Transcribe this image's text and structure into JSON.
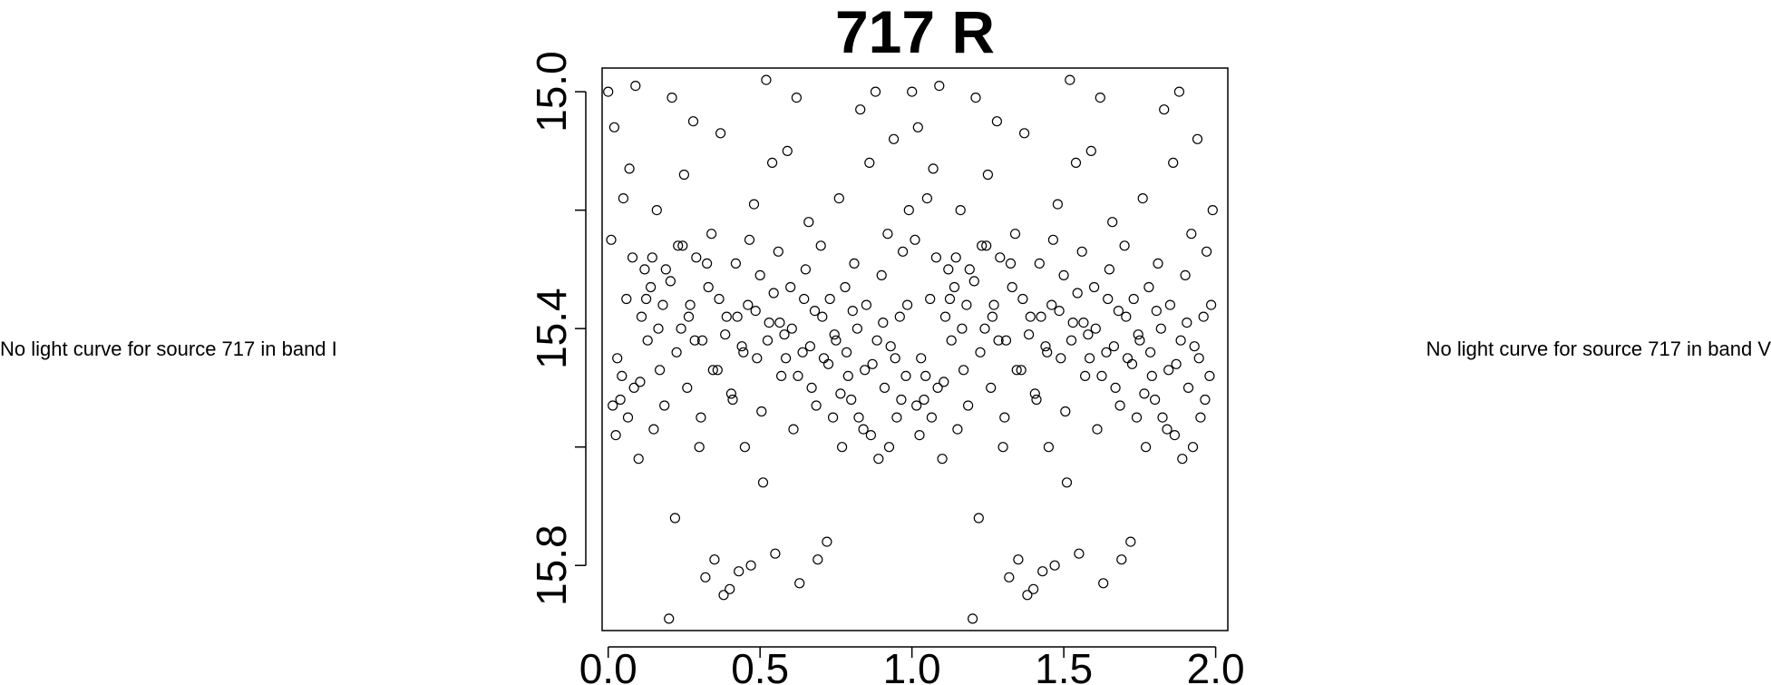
{
  "left_message": "No light curve for source 717 in band I",
  "right_message": "No light curve for source 717 in band V",
  "chart_data": {
    "type": "scatter",
    "title": "717 R",
    "xlabel": "",
    "ylabel": "",
    "xlim": [
      -0.02,
      2.04
    ],
    "ylim": [
      15.91,
      14.96
    ],
    "y_inverted": true,
    "x_ticks": [
      "0.0",
      "0.5",
      "1.0",
      "1.5",
      "2.0"
    ],
    "y_ticks": [
      "15.0",
      "15.4",
      "15.8"
    ],
    "marker": "open-circle",
    "marker_color": "#000000",
    "phase_fold": "points repeated at phase and phase+1",
    "points": [
      {
        "x": 0.0,
        "y": 15.0
      },
      {
        "x": 0.01,
        "y": 15.25
      },
      {
        "x": 0.02,
        "y": 15.06
      },
      {
        "x": 0.03,
        "y": 15.45
      },
      {
        "x": 0.04,
        "y": 15.52
      },
      {
        "x": 0.05,
        "y": 15.18
      },
      {
        "x": 0.06,
        "y": 15.35
      },
      {
        "x": 0.07,
        "y": 15.13
      },
      {
        "x": 0.08,
        "y": 15.28
      },
      {
        "x": 0.09,
        "y": 14.99
      },
      {
        "x": 0.1,
        "y": 15.62
      },
      {
        "x": 0.11,
        "y": 15.38
      },
      {
        "x": 0.12,
        "y": 15.3
      },
      {
        "x": 0.13,
        "y": 15.42
      },
      {
        "x": 0.14,
        "y": 15.33
      },
      {
        "x": 0.15,
        "y": 15.57
      },
      {
        "x": 0.16,
        "y": 15.2
      },
      {
        "x": 0.17,
        "y": 15.47
      },
      {
        "x": 0.18,
        "y": 15.36
      },
      {
        "x": 0.19,
        "y": 15.3
      },
      {
        "x": 0.2,
        "y": 15.89
      },
      {
        "x": 0.21,
        "y": 15.01
      },
      {
        "x": 0.22,
        "y": 15.72
      },
      {
        "x": 0.23,
        "y": 15.26
      },
      {
        "x": 0.24,
        "y": 15.4
      },
      {
        "x": 0.25,
        "y": 15.14
      },
      {
        "x": 0.26,
        "y": 15.5
      },
      {
        "x": 0.27,
        "y": 15.36
      },
      {
        "x": 0.28,
        "y": 15.05
      },
      {
        "x": 0.29,
        "y": 15.28
      },
      {
        "x": 0.3,
        "y": 15.6
      },
      {
        "x": 0.31,
        "y": 15.42
      },
      {
        "x": 0.32,
        "y": 15.82
      },
      {
        "x": 0.33,
        "y": 15.33
      },
      {
        "x": 0.34,
        "y": 15.24
      },
      {
        "x": 0.35,
        "y": 15.79
      },
      {
        "x": 0.36,
        "y": 15.47
      },
      {
        "x": 0.37,
        "y": 15.07
      },
      {
        "x": 0.38,
        "y": 15.85
      },
      {
        "x": 0.39,
        "y": 15.38
      },
      {
        "x": 0.4,
        "y": 15.84
      },
      {
        "x": 0.41,
        "y": 15.52
      },
      {
        "x": 0.42,
        "y": 15.29
      },
      {
        "x": 0.43,
        "y": 15.81
      },
      {
        "x": 0.44,
        "y": 15.43
      },
      {
        "x": 0.45,
        "y": 15.6
      },
      {
        "x": 0.46,
        "y": 15.36
      },
      {
        "x": 0.47,
        "y": 15.8
      },
      {
        "x": 0.48,
        "y": 15.19
      },
      {
        "x": 0.49,
        "y": 15.45
      },
      {
        "x": 0.5,
        "y": 15.31
      },
      {
        "x": 0.51,
        "y": 15.66
      },
      {
        "x": 0.52,
        "y": 14.98
      },
      {
        "x": 0.53,
        "y": 15.39
      },
      {
        "x": 0.54,
        "y": 15.12
      },
      {
        "x": 0.55,
        "y": 15.78
      },
      {
        "x": 0.56,
        "y": 15.27
      },
      {
        "x": 0.57,
        "y": 15.48
      },
      {
        "x": 0.58,
        "y": 15.41
      },
      {
        "x": 0.59,
        "y": 15.1
      },
      {
        "x": 0.6,
        "y": 15.33
      },
      {
        "x": 0.61,
        "y": 15.57
      },
      {
        "x": 0.62,
        "y": 15.01
      },
      {
        "x": 0.63,
        "y": 15.83
      },
      {
        "x": 0.64,
        "y": 15.44
      },
      {
        "x": 0.65,
        "y": 15.3
      },
      {
        "x": 0.66,
        "y": 15.22
      },
      {
        "x": 0.67,
        "y": 15.5
      },
      {
        "x": 0.68,
        "y": 15.37
      },
      {
        "x": 0.69,
        "y": 15.79
      },
      {
        "x": 0.7,
        "y": 15.26
      },
      {
        "x": 0.71,
        "y": 15.45
      },
      {
        "x": 0.72,
        "y": 15.76
      },
      {
        "x": 0.73,
        "y": 15.35
      },
      {
        "x": 0.74,
        "y": 15.55
      },
      {
        "x": 0.75,
        "y": 15.42
      },
      {
        "x": 0.76,
        "y": 15.18
      },
      {
        "x": 0.77,
        "y": 15.6
      },
      {
        "x": 0.78,
        "y": 15.33
      },
      {
        "x": 0.79,
        "y": 15.48
      },
      {
        "x": 0.8,
        "y": 15.52
      },
      {
        "x": 0.81,
        "y": 15.29
      },
      {
        "x": 0.82,
        "y": 15.4
      },
      {
        "x": 0.83,
        "y": 15.03
      },
      {
        "x": 0.84,
        "y": 15.57
      },
      {
        "x": 0.85,
        "y": 15.36
      },
      {
        "x": 0.86,
        "y": 15.12
      },
      {
        "x": 0.87,
        "y": 15.46
      },
      {
        "x": 0.88,
        "y": 15.0
      },
      {
        "x": 0.89,
        "y": 15.62
      },
      {
        "x": 0.9,
        "y": 15.31
      },
      {
        "x": 0.91,
        "y": 15.5
      },
      {
        "x": 0.92,
        "y": 15.24
      },
      {
        "x": 0.93,
        "y": 15.43
      },
      {
        "x": 0.94,
        "y": 15.08
      },
      {
        "x": 0.95,
        "y": 15.55
      },
      {
        "x": 0.96,
        "y": 15.38
      },
      {
        "x": 0.97,
        "y": 15.27
      },
      {
        "x": 0.98,
        "y": 15.48
      },
      {
        "x": 0.99,
        "y": 15.2
      },
      {
        "x": 0.015,
        "y": 15.53
      },
      {
        "x": 0.025,
        "y": 15.58
      },
      {
        "x": 0.045,
        "y": 15.48
      },
      {
        "x": 0.065,
        "y": 15.55
      },
      {
        "x": 0.085,
        "y": 15.5
      },
      {
        "x": 0.105,
        "y": 15.49
      },
      {
        "x": 0.125,
        "y": 15.35
      },
      {
        "x": 0.145,
        "y": 15.28
      },
      {
        "x": 0.165,
        "y": 15.4
      },
      {
        "x": 0.185,
        "y": 15.53
      },
      {
        "x": 0.205,
        "y": 15.32
      },
      {
        "x": 0.225,
        "y": 15.44
      },
      {
        "x": 0.245,
        "y": 15.26
      },
      {
        "x": 0.265,
        "y": 15.38
      },
      {
        "x": 0.285,
        "y": 15.42
      },
      {
        "x": 0.305,
        "y": 15.55
      },
      {
        "x": 0.325,
        "y": 15.29
      },
      {
        "x": 0.345,
        "y": 15.47
      },
      {
        "x": 0.365,
        "y": 15.35
      },
      {
        "x": 0.385,
        "y": 15.41
      },
      {
        "x": 0.405,
        "y": 15.51
      },
      {
        "x": 0.425,
        "y": 15.38
      },
      {
        "x": 0.445,
        "y": 15.44
      },
      {
        "x": 0.465,
        "y": 15.25
      },
      {
        "x": 0.485,
        "y": 15.37
      },
      {
        "x": 0.505,
        "y": 15.54
      },
      {
        "x": 0.525,
        "y": 15.42
      },
      {
        "x": 0.545,
        "y": 15.34
      },
      {
        "x": 0.565,
        "y": 15.39
      },
      {
        "x": 0.585,
        "y": 15.45
      },
      {
        "x": 0.605,
        "y": 15.4
      },
      {
        "x": 0.625,
        "y": 15.48
      },
      {
        "x": 0.645,
        "y": 15.35
      },
      {
        "x": 0.665,
        "y": 15.43
      },
      {
        "x": 0.685,
        "y": 15.53
      },
      {
        "x": 0.705,
        "y": 15.38
      },
      {
        "x": 0.725,
        "y": 15.46
      },
      {
        "x": 0.745,
        "y": 15.41
      },
      {
        "x": 0.765,
        "y": 15.51
      },
      {
        "x": 0.785,
        "y": 15.44
      },
      {
        "x": 0.805,
        "y": 15.37
      },
      {
        "x": 0.825,
        "y": 15.55
      },
      {
        "x": 0.845,
        "y": 15.47
      },
      {
        "x": 0.865,
        "y": 15.58
      },
      {
        "x": 0.885,
        "y": 15.42
      },
      {
        "x": 0.905,
        "y": 15.39
      },
      {
        "x": 0.925,
        "y": 15.6
      },
      {
        "x": 0.945,
        "y": 15.45
      },
      {
        "x": 0.965,
        "y": 15.52
      },
      {
        "x": 0.985,
        "y": 15.36
      }
    ]
  }
}
